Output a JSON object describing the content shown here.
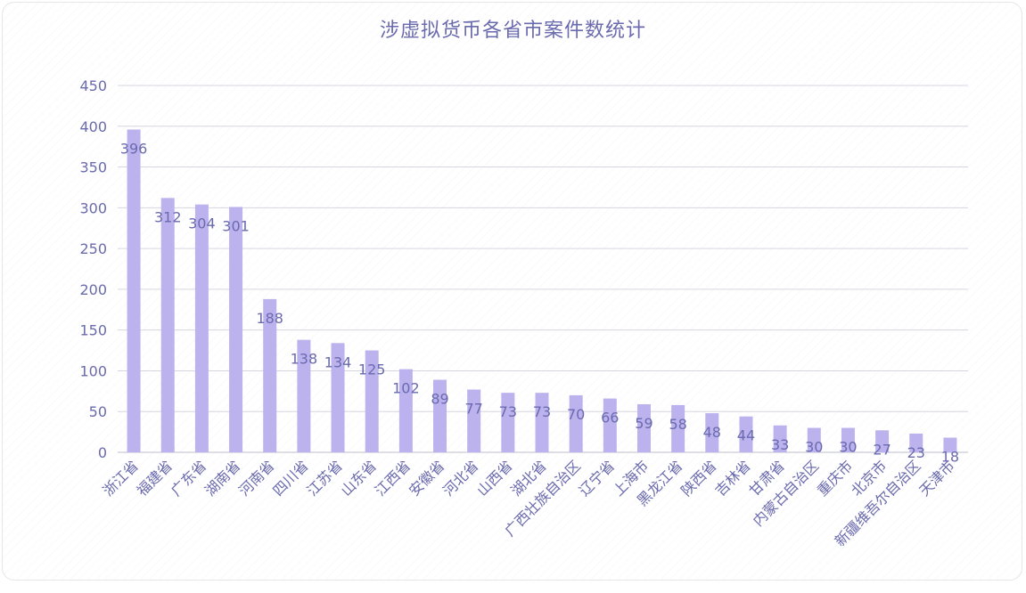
{
  "chart_data": {
    "type": "bar",
    "title": "涉虚拟货币各省市案件数统计",
    "xlabel": "",
    "ylabel": "",
    "ylim": [
      0,
      450
    ],
    "yticks": [
      0,
      50,
      100,
      150,
      200,
      250,
      300,
      350,
      400,
      450
    ],
    "grid": true,
    "legend": "none",
    "bar_color": "#bcb3ee",
    "categories": [
      "浙江省",
      "福建省",
      "广东省",
      "湖南省",
      "河南省",
      "四川省",
      "江苏省",
      "山东省",
      "江西省",
      "安徽省",
      "河北省",
      "山西省",
      "湖北省",
      "广西壮族自治区",
      "辽宁省",
      "上海市",
      "黑龙江省",
      "陕西省",
      "吉林省",
      "甘肃省",
      "内蒙古自治区",
      "重庆市",
      "北京市",
      "新疆维吾尔自治区",
      "天津市"
    ],
    "values": [
      396,
      312,
      304,
      301,
      188,
      138,
      134,
      125,
      102,
      89,
      77,
      73,
      73,
      70,
      66,
      59,
      58,
      48,
      44,
      33,
      30,
      30,
      27,
      23,
      18
    ]
  }
}
